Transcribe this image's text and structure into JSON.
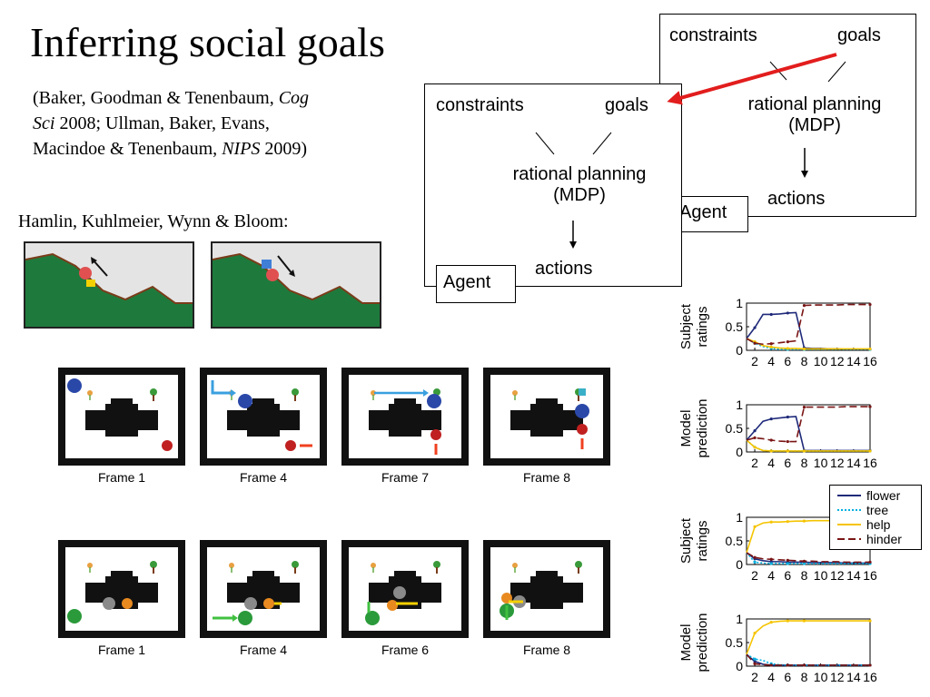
{
  "title": "Inferring social goals",
  "citation": {
    "line1_pre": "(Baker, Goodman & Tenenbaum, ",
    "line1_ital": "Cog",
    "line2_ital": "Sci",
    "line2_post": " 2008; Ullman, Baker, Evans,",
    "line3_pre": "Macindoe & Tenenbaum, ",
    "line3_ital": "NIPS",
    "line3_post": " 2009)"
  },
  "hamlin_label": "Hamlin, Kuhlmeier, Wynn & Bloom:",
  "diagram": {
    "constraints": "constraints",
    "goals": "goals",
    "planning_line1": "rational planning",
    "planning_line2": "(MDP)",
    "actions": "actions",
    "agent": "Agent"
  },
  "frames_top": [
    "Frame 1",
    "Frame 4",
    "Frame 7",
    "Frame 8"
  ],
  "frames_bottom": [
    "Frame 1",
    "Frame 4",
    "Frame 6",
    "Frame 8"
  ],
  "colors": {
    "flower": "#1f2a7a",
    "tree": "#00b0e0",
    "help": "#f5c400",
    "hinder": "#7a1515",
    "red_arrow": "#e21d1d",
    "grass": "#1e7a3c"
  },
  "legend": {
    "entries": [
      "flower",
      "tree",
      "help",
      "hinder"
    ]
  },
  "chart_data": [
    {
      "type": "line",
      "ylabel_line1": "Subject",
      "ylabel_line2": "ratings",
      "x": [
        1,
        2,
        3,
        4,
        5,
        6,
        7,
        8,
        9,
        10,
        11,
        12,
        13,
        14,
        15,
        16
      ],
      "xticks": [
        "2",
        "4",
        "6",
        "8",
        "10",
        "12",
        "14",
        "16"
      ],
      "yticks": [
        "0",
        "0.5",
        "1"
      ],
      "ylim": [
        0,
        1
      ],
      "series": [
        {
          "name": "flower",
          "values": [
            0.25,
            0.48,
            0.76,
            0.76,
            0.77,
            0.79,
            0.8,
            0.05,
            0.04,
            0.04,
            0.03,
            0.03,
            0.02,
            0.02,
            0.02,
            0.02
          ]
        },
        {
          "name": "tree",
          "values": [
            0.25,
            0.15,
            0.08,
            0.04,
            0.02,
            0.02,
            0.02,
            0.02,
            0.02,
            0.02,
            0.02,
            0.02,
            0.02,
            0.02,
            0.02,
            0.02
          ]
        },
        {
          "name": "help",
          "values": [
            0.25,
            0.18,
            0.1,
            0.07,
            0.05,
            0.04,
            0.04,
            0.03,
            0.03,
            0.03,
            0.03,
            0.03,
            0.03,
            0.03,
            0.03,
            0.03
          ]
        },
        {
          "name": "hinder",
          "values": [
            0.25,
            0.15,
            0.13,
            0.14,
            0.16,
            0.18,
            0.2,
            0.95,
            0.96,
            0.96,
            0.96,
            0.96,
            0.97,
            0.97,
            0.97,
            0.97
          ]
        }
      ]
    },
    {
      "type": "line",
      "ylabel_line1": "Model",
      "ylabel_line2": "prediction",
      "x": [
        1,
        2,
        3,
        4,
        5,
        6,
        7,
        8,
        9,
        10,
        11,
        12,
        13,
        14,
        15,
        16
      ],
      "xticks": [
        "2",
        "4",
        "6",
        "8",
        "10",
        "12",
        "14",
        "16"
      ],
      "yticks": [
        "0",
        "0.5",
        "1"
      ],
      "ylim": [
        0,
        1
      ],
      "series": [
        {
          "name": "flower",
          "values": [
            0.25,
            0.45,
            0.65,
            0.7,
            0.72,
            0.74,
            0.75,
            0.03,
            0.03,
            0.03,
            0.03,
            0.03,
            0.03,
            0.03,
            0.03,
            0.03
          ]
        },
        {
          "name": "tree",
          "values": [
            0.25,
            0.1,
            0.03,
            0.02,
            0.02,
            0.02,
            0.02,
            0.02,
            0.02,
            0.02,
            0.02,
            0.02,
            0.02,
            0.02,
            0.02,
            0.02
          ]
        },
        {
          "name": "help",
          "values": [
            0.25,
            0.1,
            0.03,
            0.02,
            0.02,
            0.02,
            0.02,
            0.02,
            0.02,
            0.02,
            0.02,
            0.02,
            0.02,
            0.02,
            0.02,
            0.02
          ]
        },
        {
          "name": "hinder",
          "values": [
            0.25,
            0.3,
            0.28,
            0.25,
            0.23,
            0.22,
            0.22,
            0.95,
            0.95,
            0.95,
            0.95,
            0.95,
            0.96,
            0.96,
            0.96,
            0.96
          ]
        }
      ]
    },
    {
      "type": "line",
      "ylabel_line1": "Subject",
      "ylabel_line2": "ratings",
      "x": [
        1,
        2,
        3,
        4,
        5,
        6,
        7,
        8,
        9,
        10,
        11,
        12,
        13,
        14,
        15,
        16
      ],
      "xticks": [
        "2",
        "4",
        "6",
        "8",
        "10",
        "12",
        "14",
        "16"
      ],
      "yticks": [
        "0",
        "0.5",
        "1"
      ],
      "ylim": [
        0,
        1
      ],
      "series": [
        {
          "name": "flower",
          "values": [
            0.25,
            0.12,
            0.08,
            0.06,
            0.06,
            0.05,
            0.05,
            0.05,
            0.04,
            0.04,
            0.04,
            0.04,
            0.03,
            0.03,
            0.03,
            0.03
          ]
        },
        {
          "name": "tree",
          "values": [
            0.25,
            0.05,
            0.03,
            0.02,
            0.02,
            0.02,
            0.02,
            0.02,
            0.02,
            0.02,
            0.02,
            0.02,
            0.02,
            0.02,
            0.02,
            0.02
          ]
        },
        {
          "name": "help",
          "values": [
            0.25,
            0.8,
            0.88,
            0.9,
            0.9,
            0.91,
            0.92,
            0.92,
            0.93,
            0.93,
            0.93,
            0.93,
            0.94,
            0.94,
            0.94,
            0.94
          ]
        },
        {
          "name": "hinder",
          "values": [
            0.25,
            0.15,
            0.12,
            0.11,
            0.1,
            0.09,
            0.08,
            0.07,
            0.07,
            0.06,
            0.06,
            0.06,
            0.05,
            0.05,
            0.05,
            0.05
          ]
        }
      ]
    },
    {
      "type": "line",
      "ylabel_line1": "Model",
      "ylabel_line2": "prediction",
      "x": [
        1,
        2,
        3,
        4,
        5,
        6,
        7,
        8,
        9,
        10,
        11,
        12,
        13,
        14,
        15,
        16
      ],
      "xticks": [
        "2",
        "4",
        "6",
        "8",
        "10",
        "12",
        "14",
        "16"
      ],
      "yticks": [
        "0",
        "0.5",
        "1"
      ],
      "ylim": [
        0,
        1
      ],
      "series": [
        {
          "name": "flower",
          "values": [
            0.25,
            0.1,
            0.04,
            0.02,
            0.02,
            0.02,
            0.02,
            0.02,
            0.02,
            0.02,
            0.02,
            0.02,
            0.02,
            0.02,
            0.02,
            0.02
          ]
        },
        {
          "name": "tree",
          "values": [
            0.25,
            0.15,
            0.12,
            0.05,
            0.03,
            0.02,
            0.02,
            0.02,
            0.02,
            0.02,
            0.02,
            0.02,
            0.02,
            0.02,
            0.02,
            0.02
          ]
        },
        {
          "name": "help",
          "values": [
            0.25,
            0.7,
            0.85,
            0.93,
            0.95,
            0.96,
            0.96,
            0.96,
            0.96,
            0.96,
            0.96,
            0.96,
            0.96,
            0.96,
            0.96,
            0.96
          ]
        },
        {
          "name": "hinder",
          "values": [
            0.25,
            0.05,
            0.03,
            0.02,
            0.02,
            0.02,
            0.02,
            0.02,
            0.02,
            0.02,
            0.02,
            0.02,
            0.02,
            0.02,
            0.02,
            0.02
          ]
        }
      ]
    }
  ]
}
